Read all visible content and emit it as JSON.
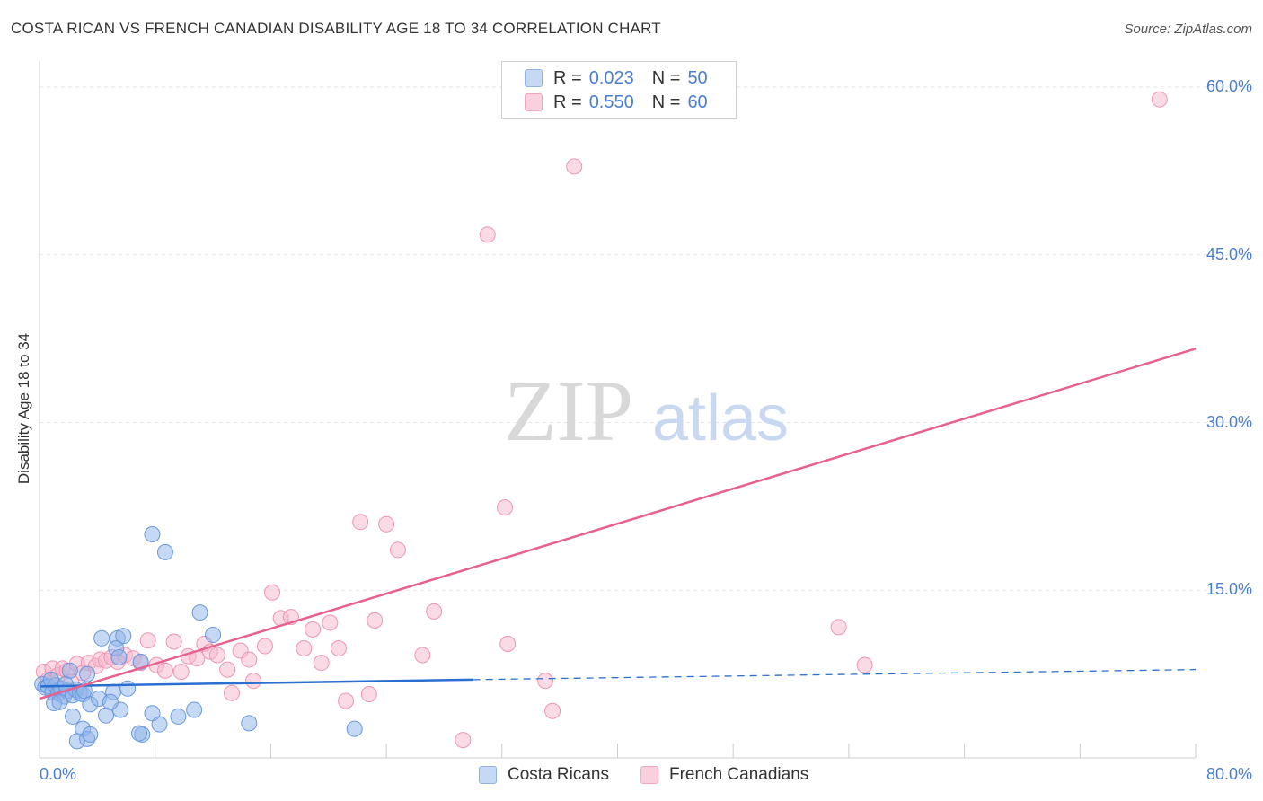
{
  "header": {
    "title": "COSTA RICAN VS FRENCH CANADIAN DISABILITY AGE 18 TO 34 CORRELATION CHART",
    "source": "Source: ZipAtlas.com"
  },
  "watermark": {
    "zip": "ZIP",
    "atlas": "atlas"
  },
  "legend": {
    "r_label": "R =",
    "n_label": "N =",
    "series": [
      {
        "r": "0.023",
        "n": "50"
      },
      {
        "r": "0.550",
        "n": "60"
      }
    ]
  },
  "bottom_legend": [
    "Costa Ricans",
    "French Canadians"
  ],
  "chart_data": {
    "type": "scatter",
    "title": "COSTA RICAN VS FRENCH CANADIAN DISABILITY AGE 18 TO 34 CORRELATION CHART",
    "xlabel": "",
    "ylabel": "Disability Age 18 to 34",
    "xlim": [
      0,
      80
    ],
    "ylim": [
      0,
      61
    ],
    "x_tick_labels": [
      "0.0%",
      "80.0%"
    ],
    "y_ticks": [
      15,
      30,
      45,
      60
    ],
    "y_tick_labels": [
      "15.0%",
      "30.0%",
      "45.0%",
      "60.0%"
    ],
    "grid": true,
    "series": [
      {
        "name": "Costa Ricans",
        "color": "#8db3ea",
        "stroke": "#6a98dc",
        "line_color": "#2a6fd0",
        "trend": {
          "x0": 0,
          "y0": 6.4,
          "x1": 30,
          "y1": 7.0,
          "x_dash_end": 80,
          "y_dash_end": 7.9
        },
        "points": [
          [
            0.2,
            6.6
          ],
          [
            0.4,
            6.3
          ],
          [
            0.6,
            6.4
          ],
          [
            0.9,
            5.9
          ],
          [
            1.1,
            6.5
          ],
          [
            1.3,
            5.8
          ],
          [
            1.5,
            6.2
          ],
          [
            1.7,
            5.5
          ],
          [
            1.9,
            6.0
          ],
          [
            2.1,
            7.8
          ],
          [
            2.3,
            5.6
          ],
          [
            2.5,
            6.1
          ],
          [
            2.8,
            5.8
          ],
          [
            3.0,
            5.7
          ],
          [
            3.1,
            6.0
          ],
          [
            3.3,
            7.5
          ],
          [
            3.5,
            4.8
          ],
          [
            1.0,
            4.9
          ],
          [
            1.4,
            5.0
          ],
          [
            2.3,
            3.7
          ],
          [
            3.0,
            2.6
          ],
          [
            2.6,
            1.5
          ],
          [
            3.3,
            1.7
          ],
          [
            3.5,
            2.1
          ],
          [
            4.1,
            5.3
          ],
          [
            4.6,
            3.8
          ],
          [
            5.1,
            5.9
          ],
          [
            5.6,
            4.3
          ],
          [
            5.4,
            10.7
          ],
          [
            5.8,
            10.9
          ],
          [
            5.3,
            9.8
          ],
          [
            6.1,
            6.2
          ],
          [
            4.3,
            10.7
          ],
          [
            5.5,
            9.0
          ],
          [
            7.0,
            8.6
          ],
          [
            7.8,
            4.0
          ],
          [
            8.3,
            3.0
          ],
          [
            8.7,
            18.4
          ],
          [
            7.1,
            2.1
          ],
          [
            6.9,
            2.2
          ],
          [
            7.8,
            20.0
          ],
          [
            9.6,
            3.7
          ],
          [
            10.7,
            4.3
          ],
          [
            11.1,
            13.0
          ],
          [
            12.0,
            11.0
          ],
          [
            14.5,
            3.1
          ],
          [
            21.8,
            2.6
          ],
          [
            4.9,
            5.0
          ],
          [
            0.8,
            7.0
          ],
          [
            1.8,
            6.6
          ]
        ]
      },
      {
        "name": "French Canadians",
        "color": "#f6b8cc",
        "stroke": "#ee94b2",
        "line_color": "#e8608e",
        "trend": {
          "x0": 0,
          "y0": 5.3,
          "x1": 80,
          "y1": 36.6
        },
        "points": [
          [
            0.3,
            7.7
          ],
          [
            0.6,
            7.0
          ],
          [
            0.9,
            8.0
          ],
          [
            1.3,
            7.4
          ],
          [
            1.6,
            8.0
          ],
          [
            1.9,
            7.8
          ],
          [
            2.2,
            6.8
          ],
          [
            2.6,
            8.4
          ],
          [
            3.0,
            7.6
          ],
          [
            3.4,
            8.5
          ],
          [
            3.9,
            8.2
          ],
          [
            4.2,
            8.8
          ],
          [
            4.6,
            8.7
          ],
          [
            5.0,
            9.0
          ],
          [
            5.4,
            8.6
          ],
          [
            5.9,
            9.2
          ],
          [
            6.5,
            8.9
          ],
          [
            7.0,
            8.5
          ],
          [
            7.5,
            10.5
          ],
          [
            8.1,
            8.3
          ],
          [
            8.7,
            7.8
          ],
          [
            9.3,
            10.4
          ],
          [
            9.8,
            7.7
          ],
          [
            10.3,
            9.1
          ],
          [
            10.9,
            8.9
          ],
          [
            11.4,
            10.2
          ],
          [
            11.8,
            9.5
          ],
          [
            12.3,
            9.2
          ],
          [
            13.0,
            7.9
          ],
          [
            13.3,
            5.8
          ],
          [
            13.9,
            9.6
          ],
          [
            14.5,
            8.8
          ],
          [
            14.8,
            6.9
          ],
          [
            15.6,
            10.0
          ],
          [
            16.1,
            14.8
          ],
          [
            16.7,
            12.5
          ],
          [
            17.4,
            12.6
          ],
          [
            18.3,
            9.8
          ],
          [
            18.9,
            11.5
          ],
          [
            19.5,
            8.5
          ],
          [
            20.1,
            12.1
          ],
          [
            20.7,
            9.8
          ],
          [
            21.2,
            5.1
          ],
          [
            22.2,
            21.1
          ],
          [
            22.8,
            5.7
          ],
          [
            23.2,
            12.3
          ],
          [
            24.0,
            20.9
          ],
          [
            24.8,
            18.6
          ],
          [
            26.5,
            9.2
          ],
          [
            27.3,
            13.1
          ],
          [
            29.3,
            1.6
          ],
          [
            31.0,
            46.8
          ],
          [
            32.2,
            22.4
          ],
          [
            32.4,
            10.2
          ],
          [
            35.0,
            6.9
          ],
          [
            35.5,
            4.2
          ],
          [
            37.0,
            52.9
          ],
          [
            55.3,
            11.7
          ],
          [
            57.1,
            8.3
          ],
          [
            77.5,
            58.9
          ]
        ]
      }
    ]
  }
}
